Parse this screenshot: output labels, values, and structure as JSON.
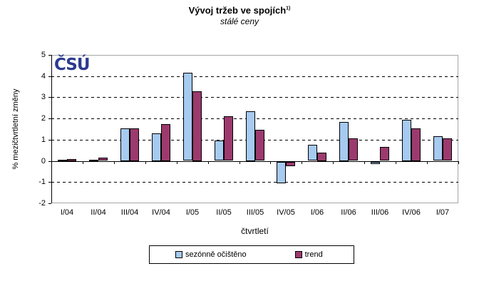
{
  "title": {
    "text": "Vývoj tržeb ve spojích",
    "superscript": "1)",
    "subtitle": "stálé ceny"
  },
  "logo": {
    "text": "ČSÚ",
    "color": "#2b3a8f"
  },
  "y_axis": {
    "label": "% mezičtvrtletní změny",
    "ticks": [
      5,
      4,
      3,
      2,
      1,
      0,
      -1,
      -2
    ]
  },
  "x_axis": {
    "label": "čtvrtletí"
  },
  "chart_data": {
    "type": "bar",
    "title": "Vývoj tržeb ve spojích 1)",
    "subtitle": "stálé ceny",
    "xlabel": "čtvrtletí",
    "ylabel": "% mezičtvrtletní změny",
    "ylim": [
      -2,
      5
    ],
    "grid": true,
    "gridline_values": [
      4,
      3,
      2,
      1,
      -1
    ],
    "legend_position": "bottom",
    "categories": [
      "I/04",
      "II/04",
      "III/04",
      "IV/04",
      "I/05",
      "II/05",
      "III/05",
      "IV/05",
      "I/06",
      "II/06",
      "III/06",
      "IV/06",
      "I/07"
    ],
    "series": [
      {
        "name": "sezónně očištěno",
        "color": "#a6caf0",
        "values": [
          0.05,
          0.05,
          1.55,
          1.3,
          4.15,
          0.95,
          2.35,
          -1.0,
          0.75,
          1.85,
          -0.1,
          1.95,
          1.15
        ]
      },
      {
        "name": "trend",
        "color": "#9c3a6e",
        "values": [
          0.1,
          0.15,
          1.55,
          1.75,
          3.3,
          2.1,
          1.45,
          -0.2,
          0.4,
          1.05,
          0.65,
          1.55,
          1.05
        ]
      }
    ]
  }
}
